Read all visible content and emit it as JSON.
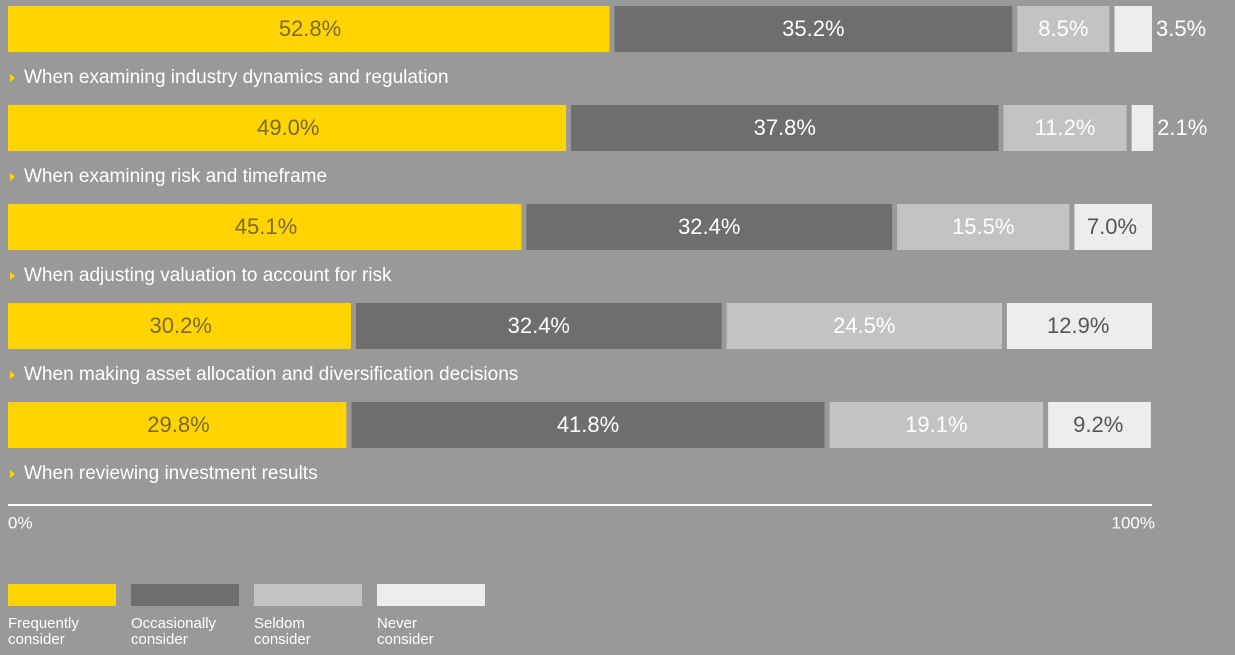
{
  "chart_data": {
    "type": "stacked-bar",
    "orientation": "horizontal",
    "categories": [
      "When examining industry dynamics and regulation",
      "When examining risk and timeframe",
      "When adjusting valuation to account for risk",
      "When making asset allocation and diversification decisions",
      "When reviewing investment results"
    ],
    "series": [
      {
        "name": "Frequently consider",
        "color": "#ffd400",
        "values": [
          52.8,
          49.0,
          45.1,
          30.2,
          29.8
        ],
        "value_labels": [
          "52.8%",
          "49.0%",
          "45.1%",
          "30.2%",
          "29.8%"
        ]
      },
      {
        "name": "Occasionally consider",
        "color": "#6e6e6e",
        "values": [
          35.2,
          37.8,
          32.4,
          32.4,
          41.8
        ],
        "value_labels": [
          "35.2%",
          "37.8%",
          "32.4%",
          "32.4%",
          "41.8%"
        ]
      },
      {
        "name": "Seldom consider",
        "color": "#c3c3c3",
        "values": [
          8.5,
          11.2,
          15.5,
          24.5,
          19.1
        ],
        "value_labels": [
          "8.5%",
          "11.2%",
          "15.5%",
          "24.5%",
          "19.1%"
        ]
      },
      {
        "name": "Never consider",
        "color": "#ededed",
        "values": [
          3.5,
          2.1,
          7.0,
          12.9,
          9.2
        ],
        "value_labels": [
          "3.5%",
          "2.1%",
          "7.0%",
          "12.9%",
          "9.2%"
        ]
      }
    ],
    "xlim": [
      0,
      100
    ],
    "xticks": [
      {
        "value": 0,
        "label": "0%"
      },
      {
        "value": 100,
        "label": "100%"
      }
    ],
    "legend": "bottom-left"
  }
}
